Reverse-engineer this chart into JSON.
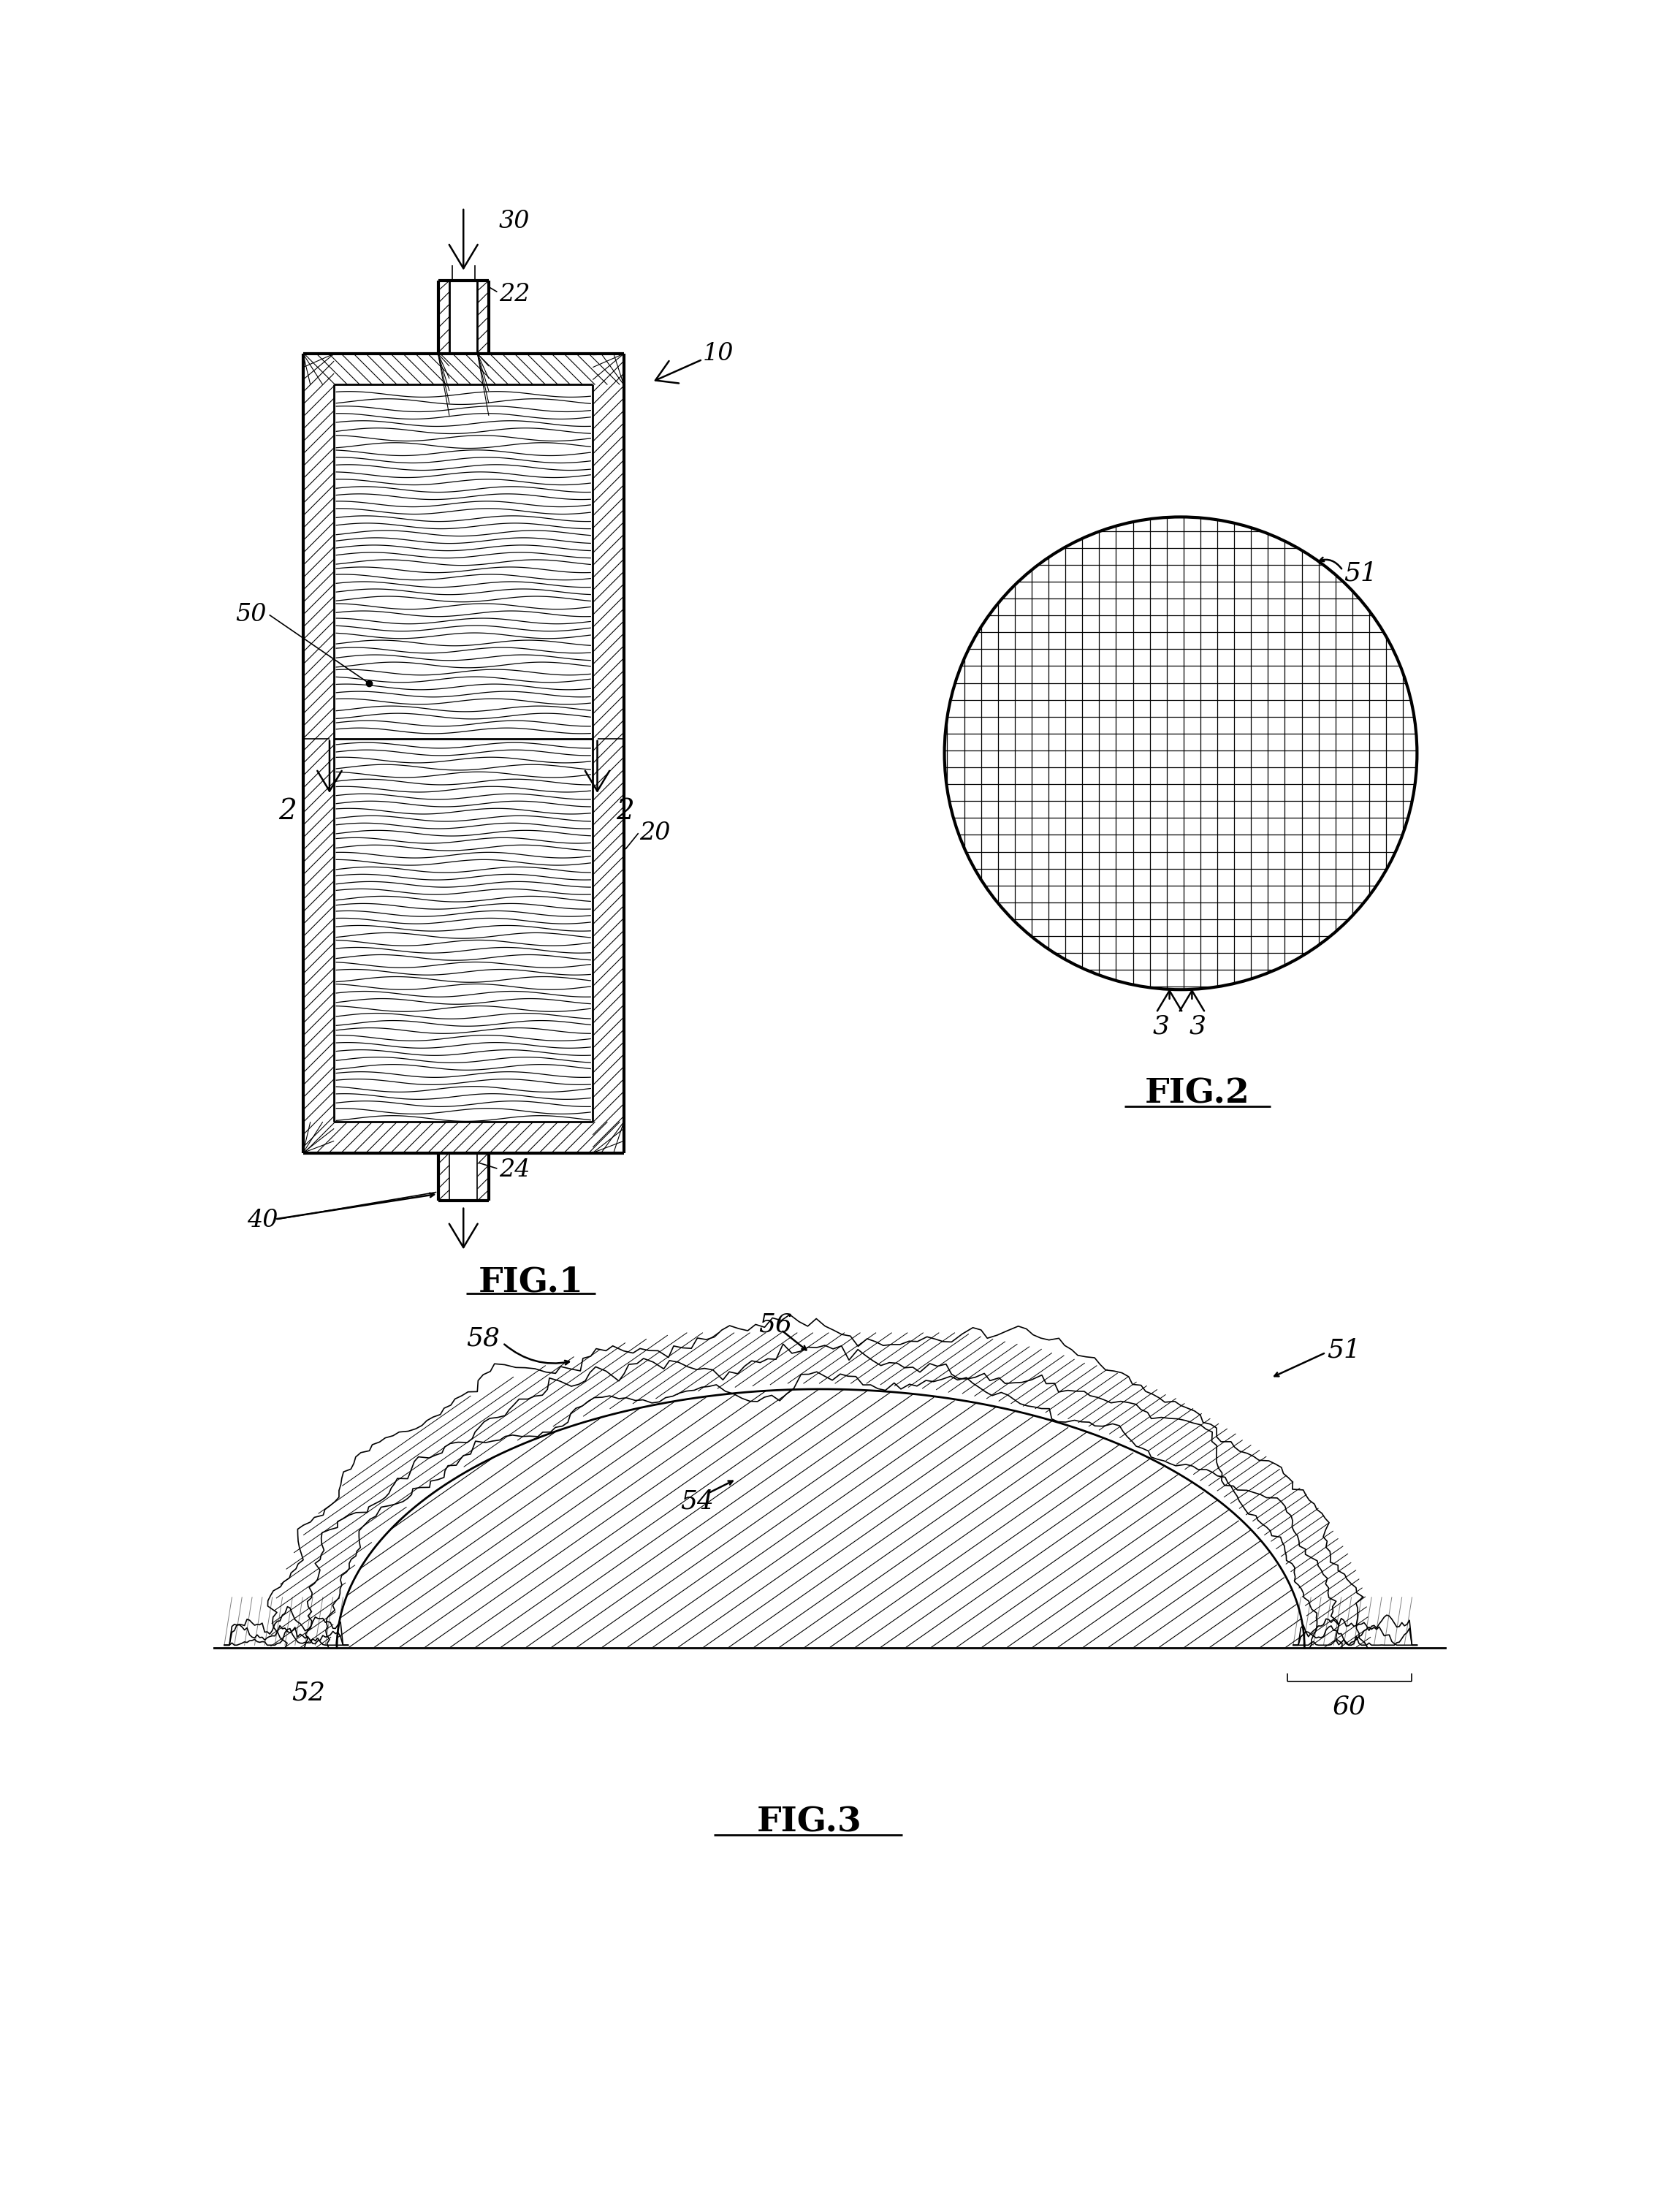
{
  "bg_color": "#ffffff",
  "fig_width": 22.87,
  "fig_height": 30.27,
  "labels": {
    "fig1": "FIG.1",
    "fig2": "FIG.2",
    "fig3": "FIG.3",
    "n10": "10",
    "n20": "20",
    "n22": "22",
    "n24": "24",
    "n30": "30",
    "n40": "40",
    "n50": "50",
    "n51_top": "51",
    "n51_bot": "51",
    "n52": "52",
    "n54": "54",
    "n56": "56",
    "n58": "58",
    "n60": "60",
    "n2a": "2",
    "n2b": "2",
    "n3a": "3",
    "n3b": "3"
  }
}
